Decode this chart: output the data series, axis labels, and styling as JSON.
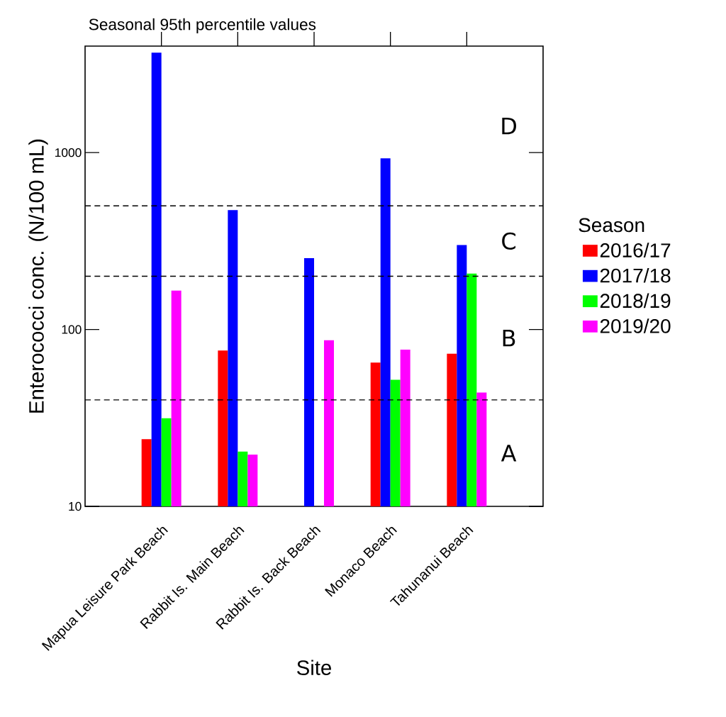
{
  "chart_data": {
    "type": "bar",
    "title": "Seasonal 95th percentile values",
    "xlabel": "Site",
    "ylabel": "Enterococci conc. (N/100 mL)",
    "legend_title": "Season",
    "categories": [
      "Mapua Leisure Park Beach",
      "Rabbit Is. Main Beach",
      "Rabbit Is. Back Beach",
      "Monaco Beach",
      "Tahunanui Beach"
    ],
    "series": [
      {
        "name": "2016/17",
        "color": "#ff0000",
        "values": [
          24,
          76,
          null,
          65,
          73
        ]
      },
      {
        "name": "2017/18",
        "color": "#0000ff",
        "values": [
          3670,
          473,
          253,
          929,
          300
        ]
      },
      {
        "name": "2018/19",
        "color": "#00ff00",
        "values": [
          31.5,
          20.4,
          null,
          52,
          207
        ]
      },
      {
        "name": "2019/20",
        "color": "#ff00ff",
        "values": [
          166,
          19.6,
          87,
          77,
          44
        ]
      }
    ],
    "log": "y",
    "ylim": [
      10,
      4000
    ],
    "yticks": [
      10,
      100,
      1000
    ],
    "grid": false,
    "legend": "right",
    "ref_lines": [
      {
        "axis": "y",
        "value": 40,
        "color": "#000000",
        "line_style": "dashed"
      },
      {
        "axis": "y",
        "value": 200,
        "color": "#000000",
        "line_style": "dashed"
      },
      {
        "axis": "y",
        "value": 500,
        "color": "#000000",
        "line_style": "dashed"
      }
    ],
    "annotations": [
      "A",
      "B",
      "C",
      "D"
    ]
  }
}
